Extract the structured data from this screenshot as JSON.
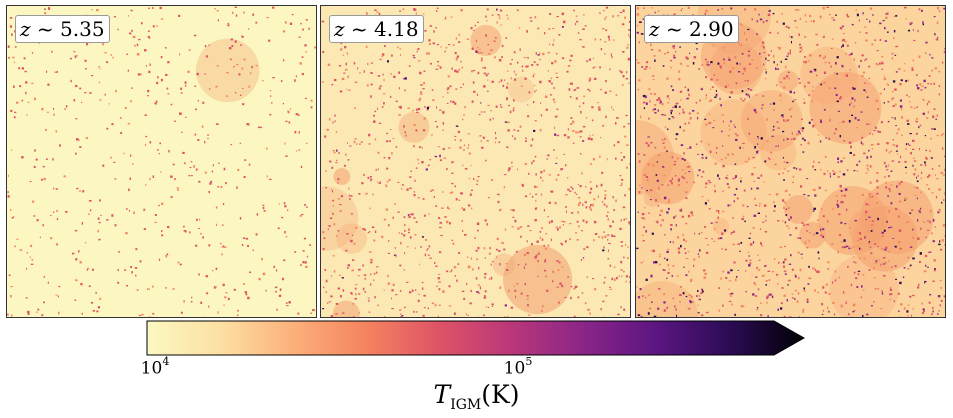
{
  "panels": [
    {
      "z_symbol": "z",
      "z_relation": "~",
      "z_value": "5.35",
      "density": 0.35,
      "heat": 0.02,
      "hot": 0.0
    },
    {
      "z_symbol": "z",
      "z_relation": "~",
      "z_value": "4.18",
      "density": 0.75,
      "heat": 0.35,
      "hot": 0.05
    },
    {
      "z_symbol": "z",
      "z_relation": "~",
      "z_value": "2.90",
      "density": 1.0,
      "heat": 0.85,
      "hot": 0.5
    }
  ],
  "colorbar": {
    "colormap": "magma-like",
    "colors": [
      "#fcf8c2",
      "#fde0a3",
      "#fcb07a",
      "#f4845f",
      "#de5366",
      "#b8377a",
      "#8a2588",
      "#5a1581",
      "#2b0b53",
      "#000004"
    ],
    "ticks": [
      {
        "base": "10",
        "exponent": "4"
      },
      {
        "base": "10",
        "exponent": "5"
      }
    ],
    "label_symbol": "T",
    "label_subscript": "IGM",
    "label_unit": "(K)"
  }
}
